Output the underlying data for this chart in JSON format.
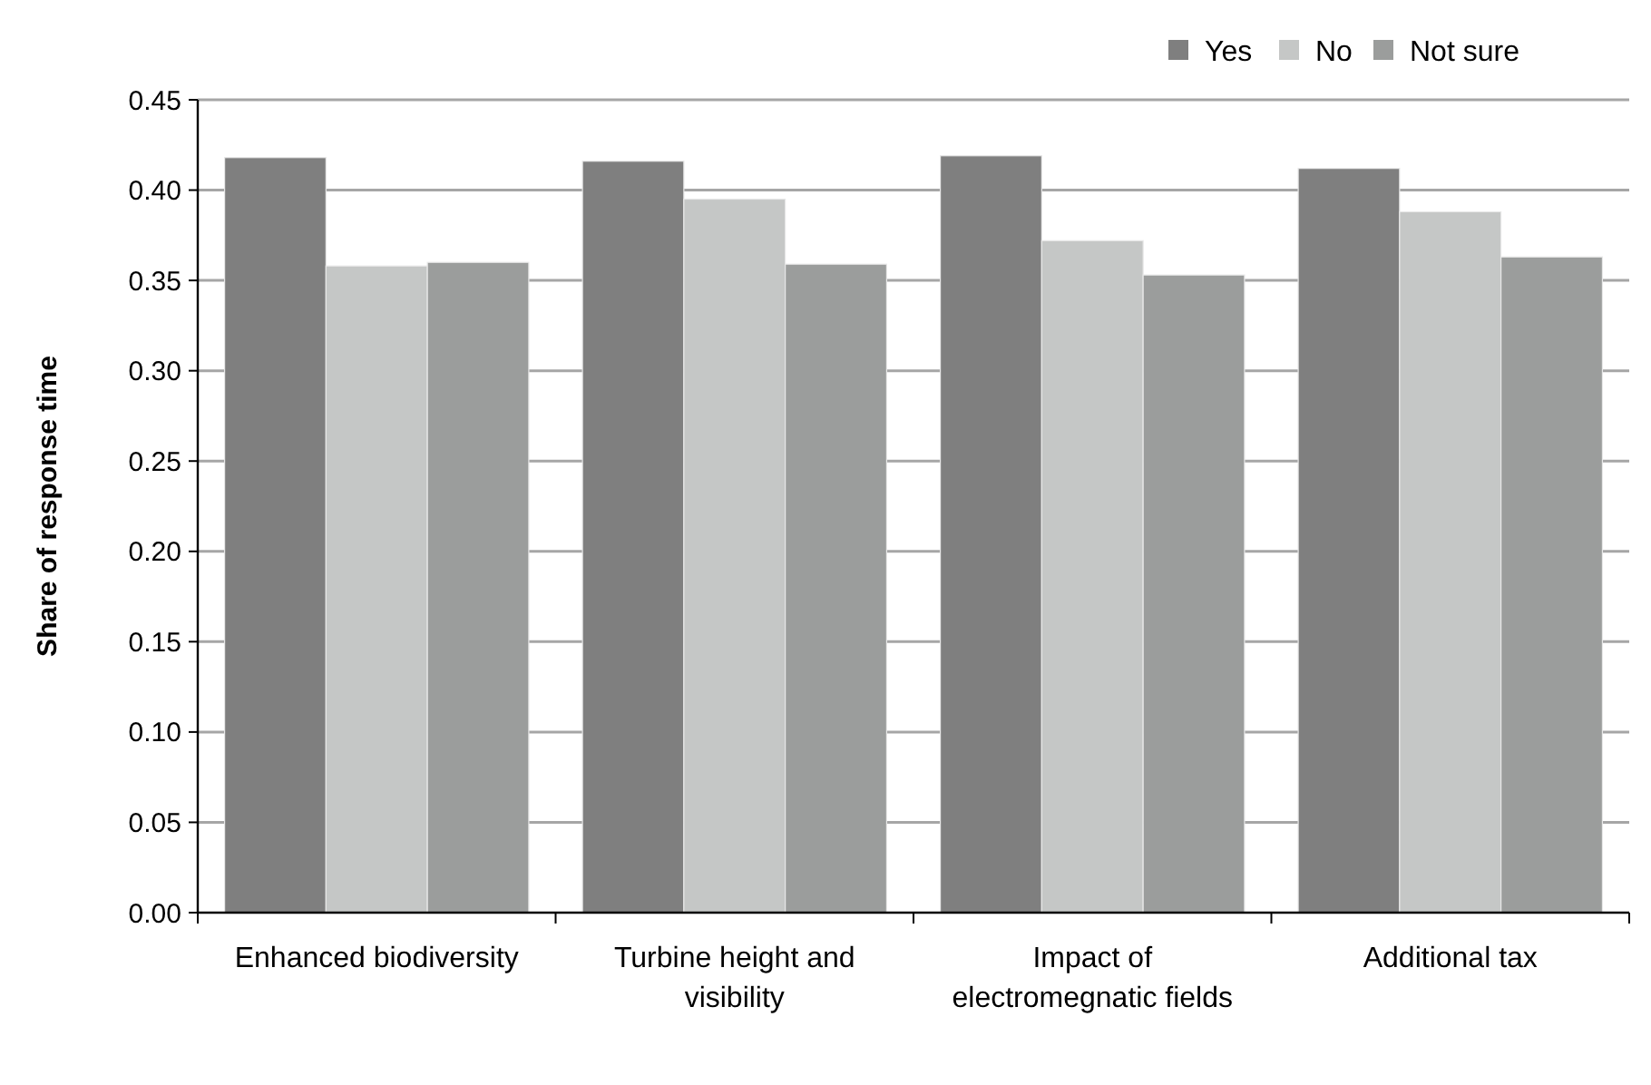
{
  "chart_data": {
    "type": "bar",
    "ylabel": "Share of response time",
    "categories": [
      "Enhanced biodiversity",
      "Turbine height and visibility",
      "Impact of electromegnatic fields",
      "Additional tax"
    ],
    "series": [
      {
        "name": "Yes",
        "color": "#7f7f7f",
        "values": [
          0.418,
          0.416,
          0.419,
          0.412
        ]
      },
      {
        "name": "No",
        "color": "#c5c7c6",
        "values": [
          0.358,
          0.395,
          0.372,
          0.388
        ]
      },
      {
        "name": "Not sure",
        "color": "#9b9d9c",
        "values": [
          0.36,
          0.359,
          0.353,
          0.363
        ]
      }
    ],
    "ylim": [
      0,
      0.45
    ],
    "yticks": [
      {
        "value": 0,
        "label": "0.00"
      },
      {
        "value": 0.05,
        "label": "0.05"
      },
      {
        "value": 0.1,
        "label": "0.10"
      },
      {
        "value": 0.15,
        "label": "0.15"
      },
      {
        "value": 0.2,
        "label": "0.20"
      },
      {
        "value": 0.25,
        "label": "0.25"
      },
      {
        "value": 0.3,
        "label": "0.30"
      },
      {
        "value": 0.35,
        "label": "0.35"
      },
      {
        "value": 0.4,
        "label": "0.40"
      },
      {
        "value": 0.45,
        "label": "0.45"
      }
    ],
    "grid": "y",
    "legend": "top right"
  }
}
